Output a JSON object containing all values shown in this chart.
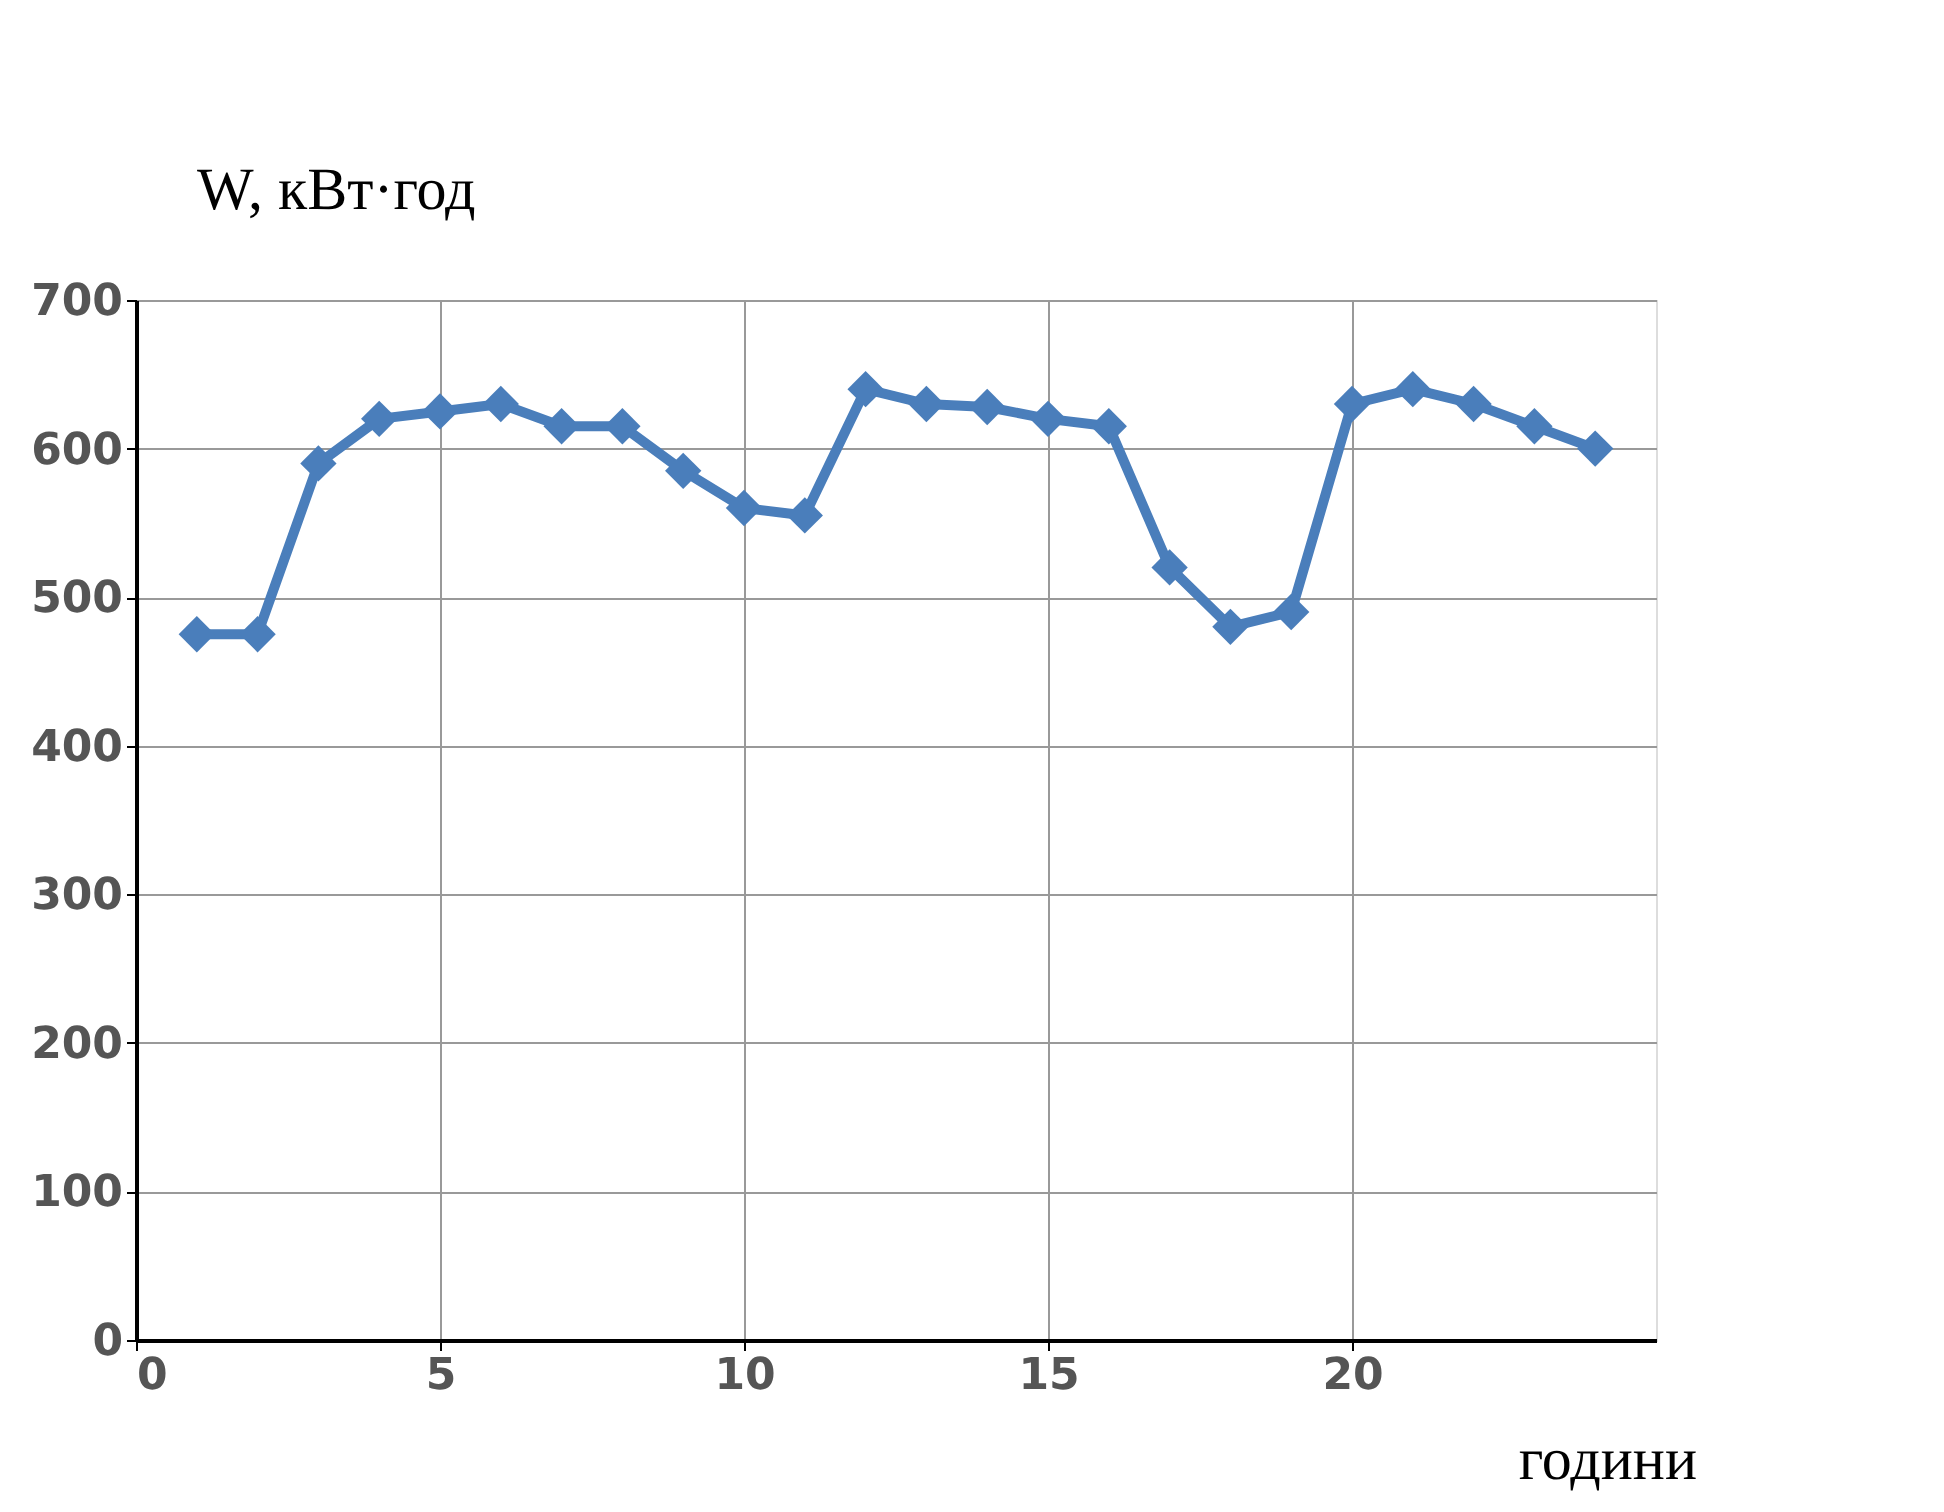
{
  "chart_data": {
    "type": "line",
    "xlabel": "години",
    "ylabel": "W, кВт·год",
    "x": [
      1,
      2,
      3,
      4,
      5,
      6,
      7,
      8,
      9,
      10,
      11,
      12,
      13,
      14,
      15,
      16,
      17,
      18,
      19,
      20,
      21,
      22,
      23,
      24
    ],
    "series": [
      {
        "color": "#4a7ebb",
        "values": [
          475,
          475,
          590,
          620,
          625,
          630,
          615,
          615,
          585,
          560,
          555,
          640,
          630,
          628,
          620,
          615,
          520,
          480,
          490,
          630,
          640,
          630,
          615,
          600
        ]
      }
    ],
    "xlim": [
      0,
      25
    ],
    "xticks": [
      0,
      5,
      10,
      15,
      20
    ],
    "ylim": [
      0,
      700
    ],
    "yticks": [
      0,
      100,
      200,
      300,
      400,
      500,
      600,
      700
    ],
    "grid": true,
    "marker": "diamond",
    "line_style": "solid",
    "legend": false
  }
}
